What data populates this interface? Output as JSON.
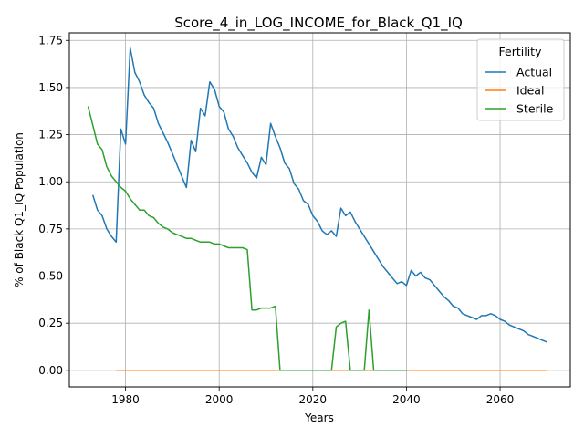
{
  "chart_data": {
    "type": "line",
    "title": "Score_4_in_LOG_INCOME_for_Black_Q1_IQ",
    "xlabel": "Years",
    "ylabel": "% of Black Q1_IQ Population",
    "xlim": [
      1968,
      2075
    ],
    "ylim": [
      -0.088,
      1.79
    ],
    "xticks": [
      1980,
      2000,
      2020,
      2040,
      2060
    ],
    "yticks": [
      0.0,
      0.25,
      0.5,
      0.75,
      1.0,
      1.25,
      1.5,
      1.75
    ],
    "grid": true,
    "legend": {
      "title": "Fertility",
      "placement": "top-right"
    },
    "series": [
      {
        "name": "Actual",
        "color": "#1f77b4",
        "x": [
          1973,
          1974,
          1975,
          1976,
          1977,
          1978,
          1979,
          1980,
          1981,
          1982,
          1983,
          1984,
          1985,
          1986,
          1987,
          1988,
          1989,
          1990,
          1991,
          1992,
          1993,
          1994,
          1995,
          1996,
          1997,
          1998,
          1999,
          2000,
          2001,
          2002,
          2003,
          2004,
          2005,
          2006,
          2007,
          2008,
          2009,
          2010,
          2011,
          2012,
          2013,
          2014,
          2015,
          2016,
          2017,
          2018,
          2019,
          2020,
          2021,
          2022,
          2023,
          2024,
          2025,
          2026,
          2027,
          2028,
          2029,
          2030,
          2031,
          2032,
          2033,
          2034,
          2035,
          2036,
          2037,
          2038,
          2039,
          2040,
          2041,
          2042,
          2043,
          2044,
          2045,
          2046,
          2047,
          2048,
          2049,
          2050,
          2051,
          2052,
          2053,
          2054,
          2055,
          2056,
          2057,
          2058,
          2059,
          2060,
          2061,
          2062,
          2063,
          2064,
          2065,
          2066,
          2067,
          2068,
          2069,
          2070
        ],
        "y": [
          0.93,
          0.85,
          0.82,
          0.75,
          0.71,
          0.68,
          1.28,
          1.2,
          1.71,
          1.58,
          1.53,
          1.46,
          1.42,
          1.39,
          1.31,
          1.26,
          1.21,
          1.15,
          1.09,
          1.03,
          0.97,
          1.22,
          1.16,
          1.39,
          1.35,
          1.53,
          1.49,
          1.4,
          1.37,
          1.28,
          1.24,
          1.18,
          1.14,
          1.1,
          1.05,
          1.02,
          1.13,
          1.09,
          1.31,
          1.24,
          1.18,
          1.1,
          1.07,
          0.99,
          0.96,
          0.9,
          0.88,
          0.82,
          0.79,
          0.74,
          0.72,
          0.74,
          0.71,
          0.86,
          0.82,
          0.84,
          0.79,
          0.75,
          0.71,
          0.67,
          0.63,
          0.59,
          0.55,
          0.52,
          0.49,
          0.46,
          0.47,
          0.45,
          0.53,
          0.5,
          0.52,
          0.49,
          0.48,
          0.45,
          0.42,
          0.39,
          0.37,
          0.34,
          0.33,
          0.3,
          0.29,
          0.28,
          0.27,
          0.29,
          0.29,
          0.3,
          0.29,
          0.27,
          0.26,
          0.24,
          0.23,
          0.22,
          0.21,
          0.19,
          0.18,
          0.17,
          0.16,
          0.15
        ]
      },
      {
        "name": "Ideal",
        "color": "#ff7f0e",
        "x": [
          1978,
          2070
        ],
        "y": [
          0.0,
          0.0
        ]
      },
      {
        "name": "Sterile",
        "color": "#2ca02c",
        "x": [
          1972,
          1973,
          1974,
          1975,
          1976,
          1977,
          1978,
          1979,
          1980,
          1981,
          1982,
          1983,
          1984,
          1985,
          1986,
          1987,
          1988,
          1989,
          1990,
          1991,
          1992,
          1993,
          1994,
          1995,
          1996,
          1997,
          1998,
          1999,
          2000,
          2001,
          2002,
          2003,
          2004,
          2005,
          2006,
          2007,
          2008,
          2009,
          2010,
          2011,
          2012,
          2013,
          2014,
          2015,
          2016,
          2017,
          2018,
          2019,
          2020,
          2021,
          2022,
          2023,
          2024,
          2025,
          2026,
          2027,
          2028,
          2029,
          2030,
          2031,
          2032,
          2033,
          2034,
          2035,
          2036,
          2037,
          2038,
          2039,
          2040
        ],
        "y": [
          1.4,
          1.3,
          1.2,
          1.17,
          1.08,
          1.03,
          1.0,
          0.97,
          0.95,
          0.91,
          0.88,
          0.85,
          0.85,
          0.82,
          0.81,
          0.78,
          0.76,
          0.75,
          0.73,
          0.72,
          0.71,
          0.7,
          0.7,
          0.69,
          0.68,
          0.68,
          0.68,
          0.67,
          0.67,
          0.66,
          0.65,
          0.65,
          0.65,
          0.65,
          0.64,
          0.32,
          0.32,
          0.33,
          0.33,
          0.33,
          0.34,
          0.0,
          0.0,
          0.0,
          0.0,
          0.0,
          0.0,
          0.0,
          0.0,
          0.0,
          0.0,
          0.0,
          0.0,
          0.23,
          0.25,
          0.26,
          0.0,
          0.0,
          0.0,
          0.0,
          0.32,
          0.0,
          0.0,
          0.0,
          0.0,
          0.0,
          0.0,
          0.0,
          0.0
        ]
      }
    ]
  }
}
